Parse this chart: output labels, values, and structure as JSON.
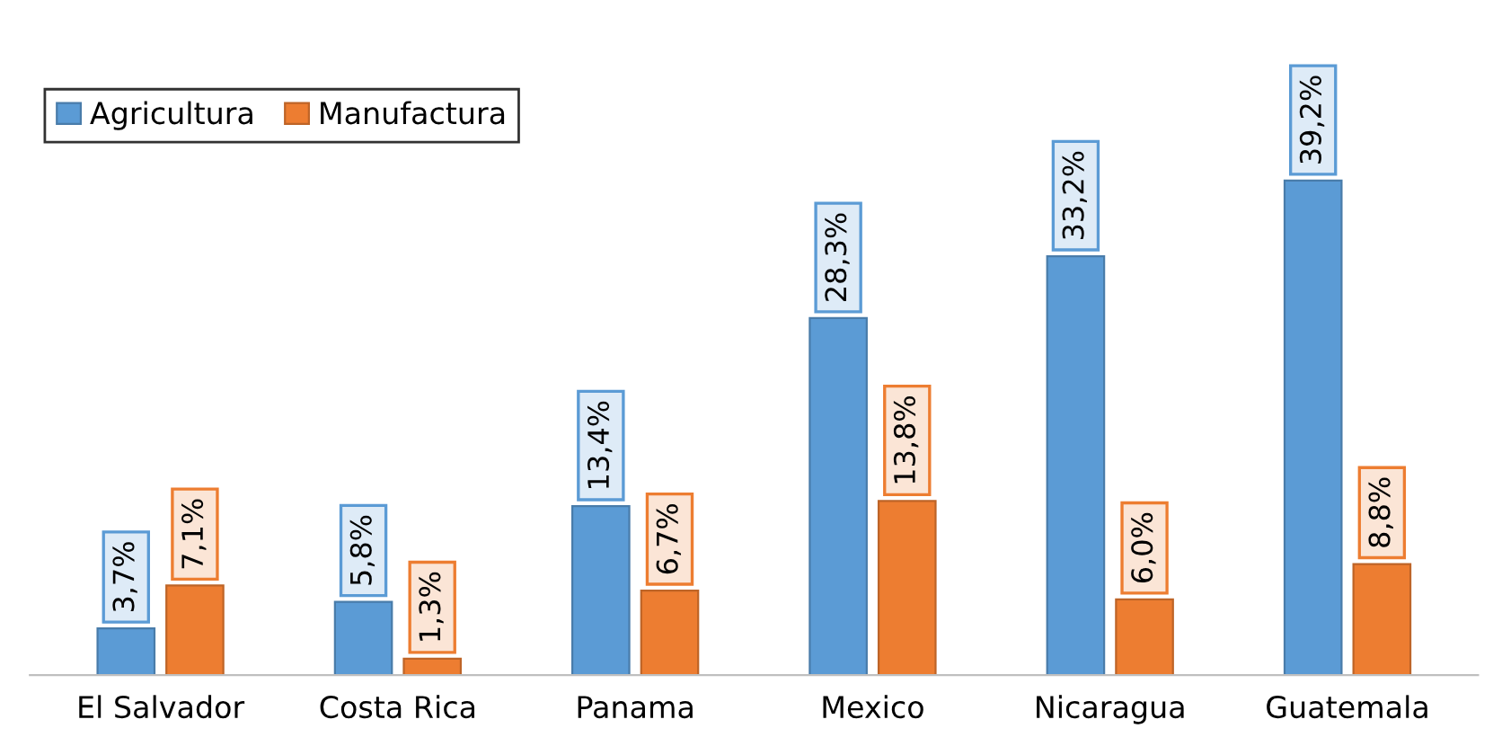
{
  "chart_data": {
    "type": "bar",
    "categories": [
      "El Salvador",
      "Costa Rica",
      "Panama",
      "Mexico",
      "Nicaragua",
      "Guatemala"
    ],
    "series": [
      {
        "name": "Agricultura",
        "color": "#5b9bd5",
        "values": [
          3.7,
          5.8,
          13.4,
          28.3,
          33.2,
          39.2
        ],
        "value_labels": [
          "3,7%",
          "5,8%",
          "13,4%",
          "28,3%",
          "33,2%",
          "39,2%"
        ]
      },
      {
        "name": "Manufactura",
        "color": "#ed7d31",
        "values": [
          7.1,
          1.3,
          6.7,
          13.8,
          6.0,
          8.8
        ],
        "value_labels": [
          "7,1%",
          "1,3%",
          "6,7%",
          "13,8%",
          "6,0%",
          "8,8%"
        ]
      }
    ],
    "legend": "top left",
    "grid": false,
    "tick_labels": "x"
  }
}
